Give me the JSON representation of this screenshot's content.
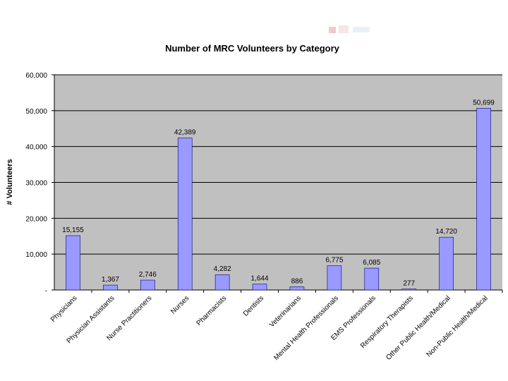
{
  "logo": {
    "icon": "logo-mark-icon"
  },
  "chart_data": {
    "type": "bar",
    "title": "Number of MRC Volunteers by Category",
    "xlabel": "",
    "ylabel": "# Volunteers",
    "categories": [
      "Physicians",
      "Physician Assistants",
      "Nurse Practitioners",
      "Nurses",
      "Pharmacists",
      "Dentists",
      "Veterinarians",
      "Mental Health Professionals",
      "EMS Professionals",
      "Respiratory Therapists",
      "Other Public Health/Medical",
      "Non-Public Health/Medical"
    ],
    "values": [
      15155,
      1367,
      2746,
      42389,
      4282,
      1644,
      886,
      6775,
      6085,
      277,
      14720,
      50699
    ],
    "data_labels": [
      "15,155",
      "1,367",
      "2,746",
      "42,389",
      "4,282",
      "1,644",
      "886",
      "6,775",
      "6,085",
      "277",
      "14,720",
      "50,699"
    ],
    "ylim": [
      0,
      60000
    ],
    "yticks": [
      0,
      10000,
      20000,
      30000,
      40000,
      50000,
      60000
    ],
    "ytick_labels": [
      "-",
      "10,000",
      "20,000",
      "30,000",
      "40,000",
      "50,000",
      "60,000"
    ],
    "grid": true,
    "legend": "none",
    "colors": {
      "bar": "#9999ff",
      "bar_edge": "#000080",
      "plot_background": "#c0c0c0",
      "gridline": "#000000"
    }
  }
}
